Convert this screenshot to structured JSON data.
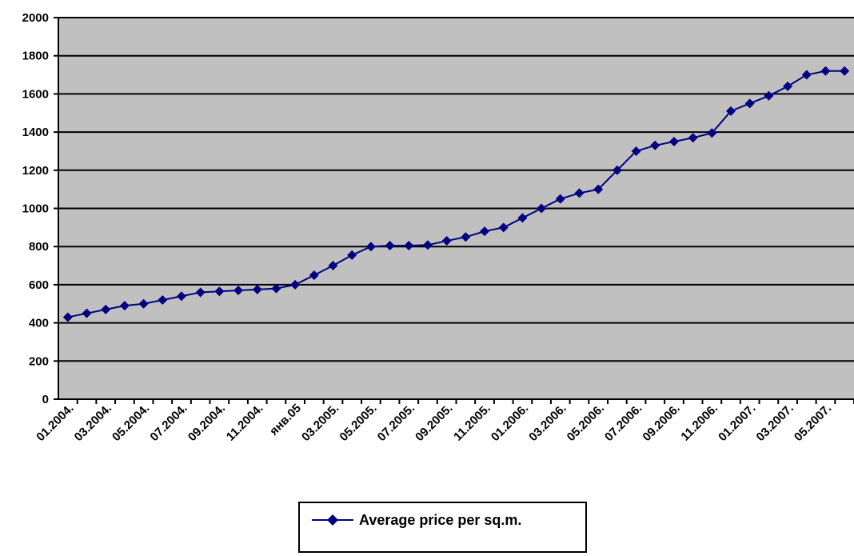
{
  "chart_data": {
    "type": "line",
    "title": "",
    "xlabel": "",
    "ylabel": "",
    "ylim": [
      0,
      2000
    ],
    "yticks": [
      0,
      200,
      400,
      600,
      800,
      1000,
      1200,
      1400,
      1600,
      1800,
      2000
    ],
    "grid": "horizontal",
    "legend_position": "bottom-center",
    "colors": {
      "plot_background": "#c0c0c0",
      "series": "#000080",
      "grid": "#000000"
    },
    "x_tick_labels": [
      "01.2004.",
      "03.2004.",
      "05.2004.",
      "07.2004.",
      "09.2004.",
      "11.2004.",
      "янв.05",
      "03.2005.",
      "05.2005.",
      "07.2005.",
      "09.2005.",
      "11.2005.",
      "01.2006.",
      "03.2006.",
      "05.2006.",
      "07.2006.",
      "09.2006.",
      "11.2006.",
      "01.2007.",
      "03.2007.",
      "05.2007."
    ],
    "series": [
      {
        "name": "Average price per sq.m.",
        "values": [
          430,
          450,
          470,
          490,
          500,
          520,
          540,
          560,
          565,
          570,
          575,
          580,
          600,
          650,
          700,
          755,
          800,
          805,
          805,
          808,
          830,
          850,
          880,
          900,
          950,
          1000,
          1050,
          1080,
          1100,
          1200,
          1300,
          1330,
          1350,
          1370,
          1395,
          1510,
          1550,
          1590,
          1640,
          1700,
          1720,
          1720
        ]
      }
    ]
  }
}
